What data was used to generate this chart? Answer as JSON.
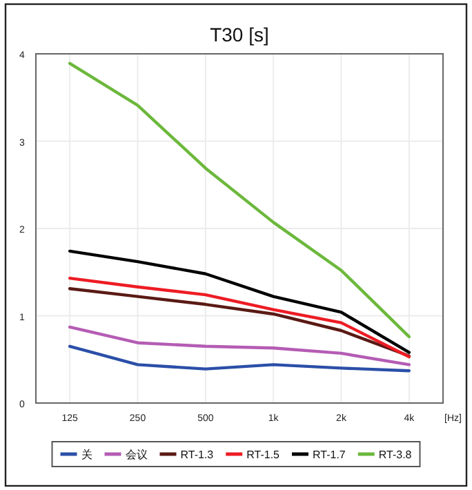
{
  "chart_data": {
    "type": "line",
    "title": "T30 [s]",
    "xlabel": "[Hz]",
    "categories": [
      "125",
      "250",
      "500",
      "1k",
      "2k",
      "4k"
    ],
    "ylim": [
      0,
      4
    ],
    "yticks": [
      0,
      1,
      2,
      3,
      4
    ],
    "grid": true,
    "legend": "bottom",
    "line_style": "solid",
    "series": [
      {
        "name": "关",
        "color": "#2b4fa8",
        "values": [
          0.65,
          0.44,
          0.39,
          0.44,
          0.4,
          0.37
        ]
      },
      {
        "name": "会议",
        "color": "#b45cb4",
        "values": [
          0.87,
          0.69,
          0.65,
          0.63,
          0.57,
          0.44
        ]
      },
      {
        "name": "RT-1.3",
        "color": "#5a1a14",
        "values": [
          1.31,
          1.22,
          1.13,
          1.02,
          0.83,
          0.54
        ]
      },
      {
        "name": "RT-1.5",
        "color": "#ee1c24",
        "values": [
          1.43,
          1.33,
          1.24,
          1.07,
          0.92,
          0.53
        ]
      },
      {
        "name": "RT-1.7",
        "color": "#000000",
        "values": [
          1.74,
          1.62,
          1.48,
          1.22,
          1.04,
          0.58
        ]
      },
      {
        "name": "RT-3.8",
        "color": "#6cb83c",
        "values": [
          3.89,
          3.41,
          2.69,
          2.07,
          1.52,
          0.76
        ]
      }
    ]
  }
}
